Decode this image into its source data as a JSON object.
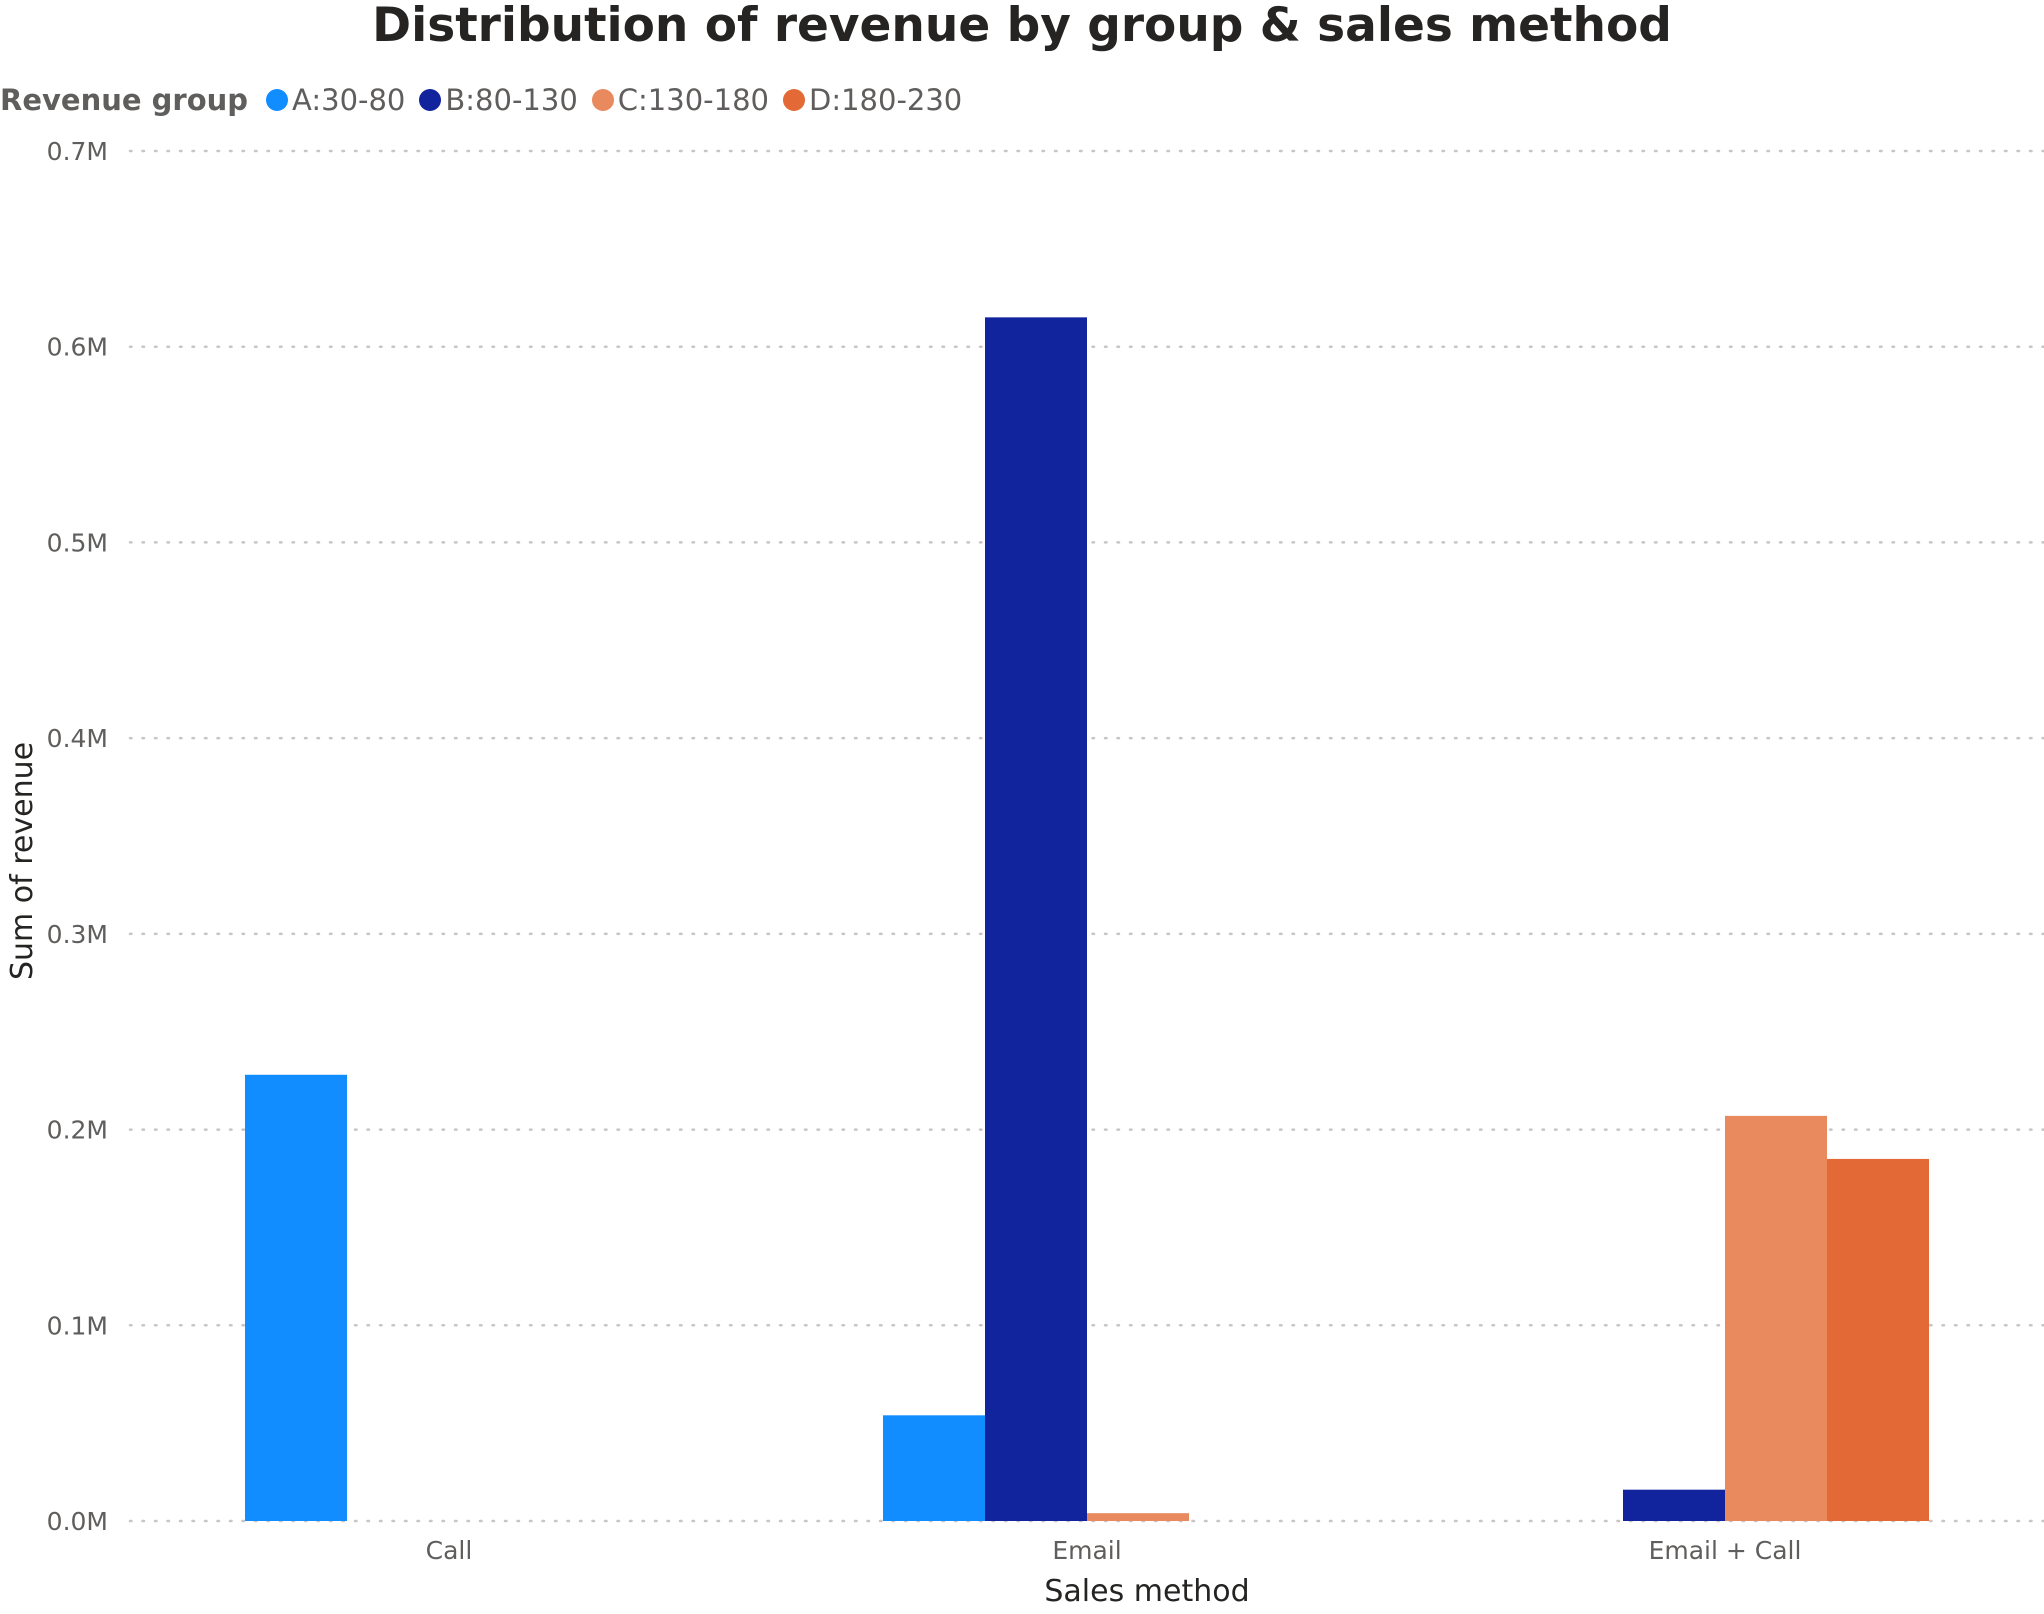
{
  "chart_data": {
    "type": "bar",
    "title": "Distribution of revenue by group & sales method",
    "xlabel": "Sales method",
    "ylabel": "Sum of revenue",
    "categories": [
      "Call",
      "Email",
      "Email + Call"
    ],
    "legend_title": "Revenue group",
    "legend_position": "top-left",
    "grid": true,
    "ylim": [
      0,
      700000
    ],
    "yticks": [
      0,
      100000,
      200000,
      300000,
      400000,
      500000,
      600000,
      700000
    ],
    "ytick_labels": [
      "0.0M",
      "0.1M",
      "0.2M",
      "0.3M",
      "0.4M",
      "0.5M",
      "0.6M",
      "0.7M"
    ],
    "series": [
      {
        "name": "A:30-80",
        "color": "#118DFF",
        "values": [
          228000,
          54000,
          0
        ]
      },
      {
        "name": "B:80-130",
        "color": "#12239E",
        "values": [
          0,
          615000,
          16000
        ]
      },
      {
        "name": "C:130-180",
        "color": "#E8895E",
        "values": [
          0,
          4000,
          207000
        ]
      },
      {
        "name": "D:180-230",
        "color": "#E36A37",
        "values": [
          0,
          0,
          185000
        ]
      }
    ]
  }
}
